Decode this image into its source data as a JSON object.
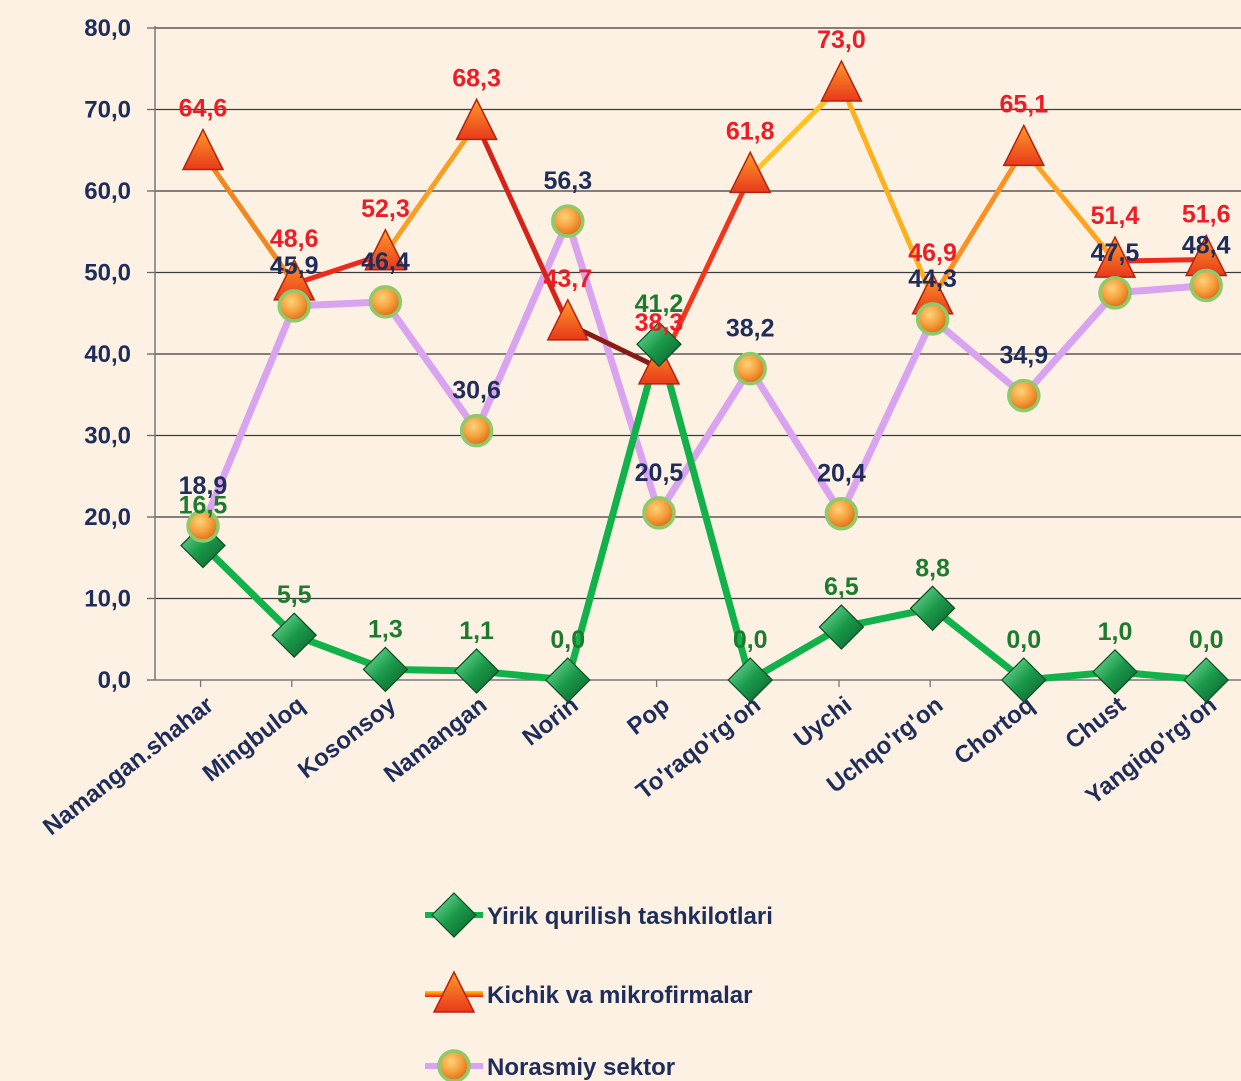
{
  "chart_data": {
    "type": "line",
    "categories": [
      "Namangan.shahar",
      "Mingbuloq",
      "Kosonsoy",
      "Namangan",
      "Norin",
      "Pop",
      "To'raqo'rg'on",
      "Uychi",
      "Uchqo'rg'on",
      "Chortoq",
      "Chust",
      "Yangiqo'rg'on"
    ],
    "series": [
      {
        "name": "Yirik qurilish tashkilotlari",
        "values": [
          16.5,
          5.5,
          1.3,
          1.1,
          0.0,
          41.2,
          0.0,
          6.5,
          8.8,
          0.0,
          1.0,
          0.0
        ],
        "labels": [
          "16,5",
          "5,5",
          "1,3",
          "1,1",
          "0,0",
          "41,2",
          "0,0",
          "6,5",
          "8,8",
          "0,0",
          "1,0",
          "0,0"
        ],
        "color": "#12b24a",
        "label_color": "#1e7a2e",
        "marker": "diamond"
      },
      {
        "name": "Kichik va mikrofirmalar",
        "values": [
          64.6,
          48.6,
          52.3,
          68.3,
          43.7,
          38.3,
          61.8,
          73.0,
          46.9,
          65.1,
          51.4,
          51.6
        ],
        "labels": [
          "64,6",
          "48,6",
          "52,3",
          "68,3",
          "43,7",
          "38,3",
          "61,8",
          "73,0",
          "46,9",
          "65,1",
          "51,4",
          "51,6"
        ],
        "segment_colors": [
          "#f2871f",
          "#ee2a1c",
          "#f9a024",
          "#d6231a",
          "#8a1a14",
          "#f2361c",
          "#ffc21f",
          "#ffb01f",
          "#ff8f20",
          "#ffa320",
          "#ee2a1c"
        ],
        "color": "#f5861f",
        "label_color": "#ee1c24",
        "marker": "triangle"
      },
      {
        "name": "Norasmiy sektor",
        "values": [
          18.9,
          45.9,
          46.4,
          30.6,
          56.3,
          20.5,
          38.2,
          20.4,
          44.3,
          34.9,
          47.5,
          48.4
        ],
        "labels": [
          "18,9",
          "45,9",
          "46,4",
          "30,6",
          "56,3",
          "20,5",
          "38,2",
          "20,4",
          "44,3",
          "34,9",
          "47,5",
          "48,4"
        ],
        "color": "#d9a3ef",
        "label_color": "#1f2d5a",
        "marker": "circle"
      }
    ],
    "ylim": [
      0,
      80
    ],
    "yticks": [
      "0,0",
      "10,0",
      "20,0",
      "30,0",
      "40,0",
      "50,0",
      "60,0",
      "70,0",
      "80,0"
    ],
    "grid": true,
    "legend_position": "bottom"
  }
}
